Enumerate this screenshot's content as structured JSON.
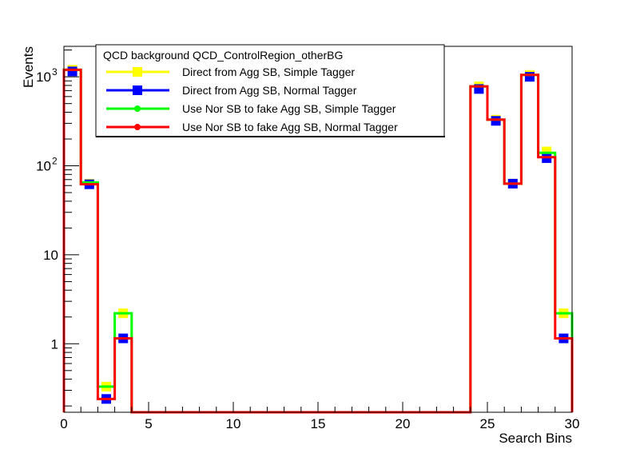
{
  "chart_data": {
    "type": "histogram-step",
    "xlabel": "Search Bins",
    "ylabel": "Events",
    "xlim": [
      0,
      30
    ],
    "ylim": [
      0.17,
      2200
    ],
    "yscale": "log",
    "grid": false,
    "legend_placement": "top-left",
    "legend_title": "QCD background QCD_ControlRegion_otherBG",
    "x_ticks": [
      {
        "value": 0,
        "label": "0"
      },
      {
        "value": 5,
        "label": "5"
      },
      {
        "value": 10,
        "label": "10"
      },
      {
        "value": 15,
        "label": "15"
      },
      {
        "value": 20,
        "label": "20"
      },
      {
        "value": 25,
        "label": "25"
      },
      {
        "value": 30,
        "label": "30"
      }
    ],
    "y_ticks": [
      {
        "value": 1,
        "label": "1"
      },
      {
        "value": 10,
        "label": "10"
      },
      {
        "value": 100,
        "label": "10",
        "exp": "2"
      },
      {
        "value": 1000,
        "label": "10",
        "exp": "3"
      }
    ],
    "bin_edges": [
      0,
      1,
      2,
      3,
      4,
      5,
      6,
      7,
      8,
      9,
      10,
      11,
      12,
      13,
      14,
      15,
      16,
      17,
      18,
      19,
      20,
      21,
      22,
      23,
      24,
      25,
      26,
      27,
      28,
      29,
      30
    ],
    "series": [
      {
        "name": "Direct from Agg SB, Simple Tagger",
        "color": "#ffff00",
        "marker": "square",
        "style": "markers",
        "values": [
          1200,
          63,
          0.33,
          2.2,
          0,
          0,
          0,
          0,
          0,
          0,
          0,
          0,
          0,
          0,
          0,
          0,
          0,
          0,
          0,
          0,
          0,
          0,
          0,
          0,
          780,
          330,
          63,
          1050,
          145,
          2.2
        ]
      },
      {
        "name": "Direct from Agg SB, Normal Tagger",
        "color": "#0000ff",
        "marker": "square",
        "style": "markers",
        "values": [
          1150,
          62,
          0.24,
          1.15,
          0,
          0,
          0,
          0,
          0,
          0,
          0,
          0,
          0,
          0,
          0,
          0,
          0,
          0,
          0,
          0,
          0,
          0,
          0,
          0,
          730,
          320,
          63,
          1000,
          122,
          1.15
        ]
      },
      {
        "name": "Use Nor SB to fake Agg SB, Simple Tagger",
        "color": "#00ff00",
        "marker": "circle",
        "style": "step",
        "values": [
          1200,
          65,
          0.33,
          2.2,
          0,
          0,
          0,
          0,
          0,
          0,
          0,
          0,
          0,
          0,
          0,
          0,
          0,
          0,
          0,
          0,
          0,
          0,
          0,
          0,
          780,
          330,
          63,
          1050,
          140,
          2.2
        ]
      },
      {
        "name": "Use Nor SB to fake Agg SB, Normal Tagger",
        "color": "#ff0000",
        "marker": "circle",
        "style": "step",
        "values": [
          1200,
          62,
          0.24,
          1.15,
          0,
          0,
          0,
          0,
          0,
          0,
          0,
          0,
          0,
          0,
          0,
          0,
          0,
          0,
          0,
          0,
          0,
          0,
          0,
          0,
          780,
          330,
          63,
          1050,
          125,
          1.15
        ]
      }
    ]
  }
}
